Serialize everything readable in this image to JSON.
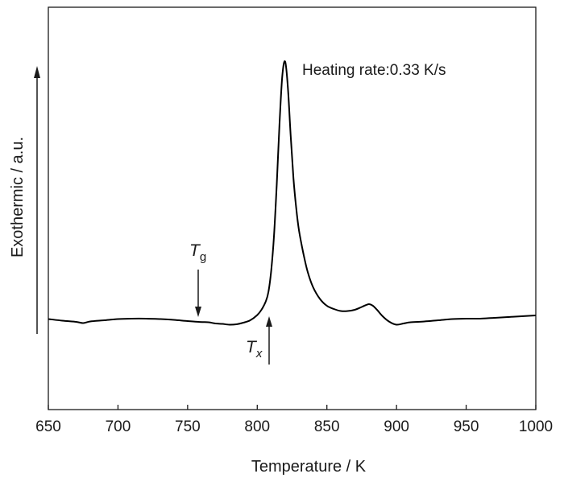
{
  "chart_data": {
    "type": "line",
    "title": "",
    "xlabel": "Temperature / K",
    "ylabel": "Exothermic / a.u.",
    "xlim": [
      650,
      1000
    ],
    "ylim": [
      0,
      1
    ],
    "xticks": [
      "650",
      "700",
      "750",
      "800",
      "850",
      "900",
      "950",
      "1000"
    ],
    "yticks": [],
    "grid": false,
    "legend": "none",
    "annotations": {
      "heating_rate": "Heating rate:0.33 K/s",
      "tg": {
        "symbol": "T",
        "subscript": "g",
        "x": 758
      },
      "tx": {
        "symbol": "T",
        "subscript": "x",
        "x": 808
      }
    },
    "series": [
      {
        "color": "#000000",
        "x": [
          650,
          660,
          670,
          675,
          680,
          690,
          700,
          710,
          720,
          730,
          740,
          750,
          758,
          765,
          770,
          775,
          780,
          785,
          790,
          795,
          800,
          803,
          806,
          808,
          810,
          812,
          814,
          816,
          818,
          820,
          822,
          824,
          826,
          828,
          830,
          833,
          836,
          840,
          845,
          850,
          855,
          860,
          865,
          870,
          875,
          880,
          883,
          886,
          890,
          895,
          900,
          905,
          910,
          920,
          930,
          940,
          950,
          960,
          970,
          980,
          990,
          1000
        ],
        "y": [
          0.225,
          0.221,
          0.218,
          0.215,
          0.219,
          0.222,
          0.225,
          0.226,
          0.226,
          0.225,
          0.223,
          0.22,
          0.218,
          0.217,
          0.214,
          0.213,
          0.211,
          0.212,
          0.216,
          0.222,
          0.235,
          0.248,
          0.268,
          0.292,
          0.345,
          0.43,
          0.56,
          0.71,
          0.83,
          0.865,
          0.8,
          0.68,
          0.575,
          0.5,
          0.445,
          0.39,
          0.345,
          0.305,
          0.275,
          0.258,
          0.25,
          0.245,
          0.245,
          0.248,
          0.255,
          0.262,
          0.258,
          0.248,
          0.232,
          0.218,
          0.211,
          0.214,
          0.217,
          0.219,
          0.222,
          0.225,
          0.226,
          0.226,
          0.228,
          0.23,
          0.232,
          0.234
        ]
      }
    ]
  }
}
